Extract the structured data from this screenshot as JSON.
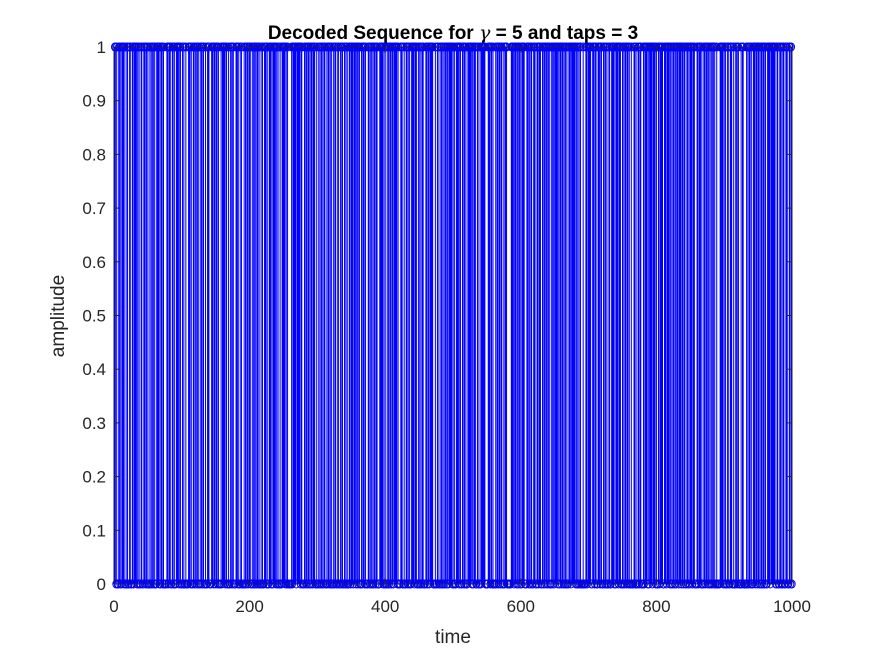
{
  "chart_data": {
    "type": "stem",
    "title_prefix": "Decoded Sequence for ",
    "title_symbol": "γ",
    "title_suffix": " = 5 and taps = 3",
    "xlabel": "time",
    "ylabel": "amplitude",
    "xlim": [
      0,
      1000
    ],
    "ylim": [
      0,
      1
    ],
    "xticks": [
      0,
      200,
      400,
      600,
      800,
      1000
    ],
    "yticks": [
      0,
      0.1,
      0.2,
      0.3,
      0.4,
      0.5,
      0.6,
      0.7,
      0.8,
      0.9,
      1
    ],
    "grid": false,
    "series": [
      {
        "color": "#0000ff",
        "marker": "circle-open",
        "x_start": 1,
        "x_step": 1,
        "values": "1101001101011101001100110011011110101001100111010100101011010011110101101000011011100110100111101100101001000111010011010110100110110010011100011101101101000101111011001001101100011101001100010101101110010110101101001010011101001110101111010100100111110101000001011111011111011000110101101011011100100101010101100101101010010110011001011001010100110111011101101100101110100011010101011011000111110101001010110110111110100011100100110101001111011100101010110001101101111100010011001010101011010111110101001111011001101010011111101011100110010111111000011101101000101101101100101110000001111011101011010111100011101011001110011011100110110110110010110111110101101101010100111011111101010101000100011011111001110110011101100110101001100111101011101110010101101101001000110100110110001011110101111011110100110111100111011110101011010111011101101100110101110111000110111010011011101010101101001000011111010100110011100100110110001011000010101101001110110110101011011001111011111110011001101011001110011010"
      }
    ]
  }
}
